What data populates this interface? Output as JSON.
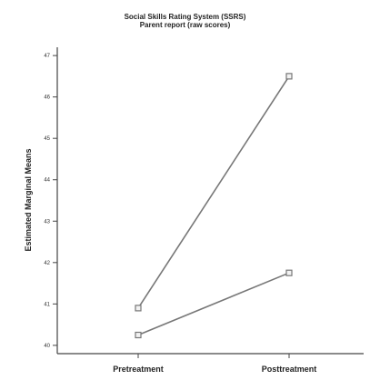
{
  "chart_data": {
    "type": "line",
    "title": "Social Skills Rating System (SSRS)",
    "subtitle": "Parent report (raw scores)",
    "xlabel": "",
    "ylabel": "Estimated Marginal Means",
    "categories": [
      "Pretreatment",
      "Posttreatment"
    ],
    "ylim": [
      39.8,
      47.2
    ],
    "yticks": [
      40,
      41,
      42,
      43,
      44,
      45,
      46,
      47
    ],
    "grid": false,
    "legend": "none",
    "series": [
      {
        "values": [
          40.9,
          46.5
        ],
        "color": "#777777"
      },
      {
        "values": [
          40.25,
          41.75
        ],
        "color": "#777777"
      }
    ]
  }
}
